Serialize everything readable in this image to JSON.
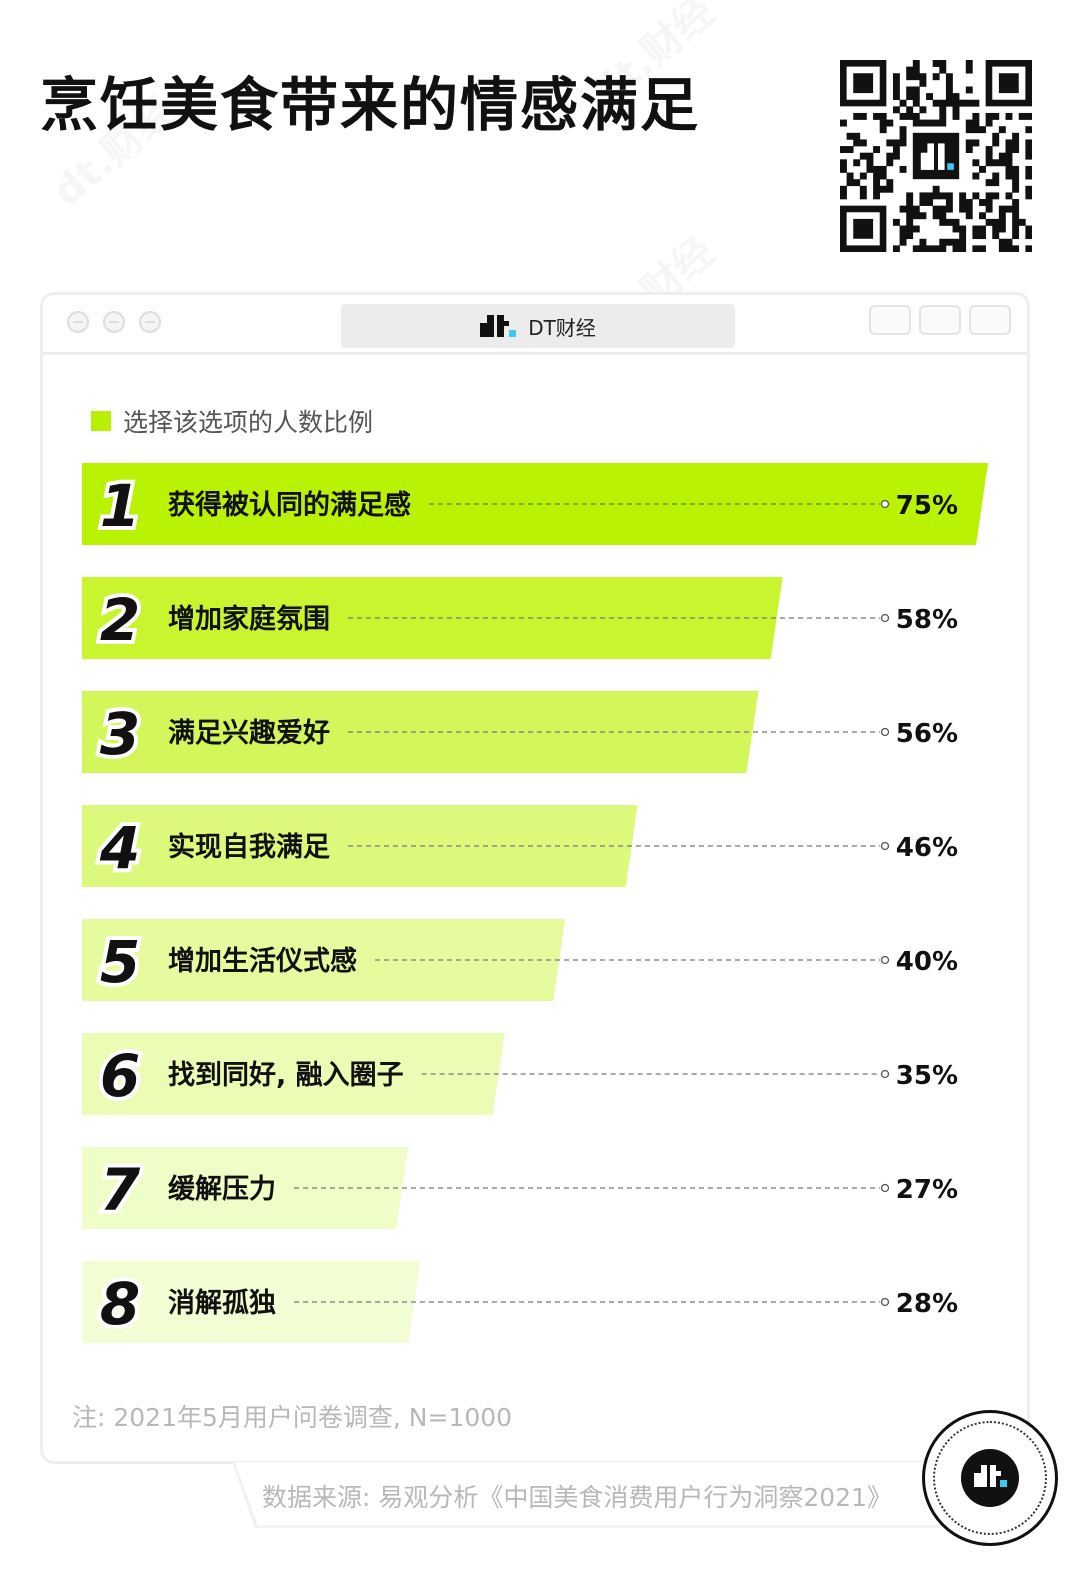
{
  "page": {
    "title": "烹饪美食带来的情感满足",
    "brand": "DT财经",
    "legend_label": "选择该选项的人数比例",
    "note": "注: 2021年5月用户问卷调查, N=1000",
    "source": "数据来源: 易观分析《中国美食消费用户行为洞察2021》",
    "watermark": "dt.财经"
  },
  "colors": {
    "accent": "#b8f000",
    "bar_shades": [
      "#b9f202",
      "#c8f52e",
      "#d3f75b",
      "#dcf97c",
      "#e5fb9e",
      "#ebfcb5",
      "#effdc6",
      "#f2fdd3"
    ],
    "text": "#111111",
    "muted": "#b8b8b8"
  },
  "icons": {
    "qr": "qr-code-icon",
    "logo": "dt-logo-icon"
  },
  "chart_data": {
    "type": "bar",
    "orientation": "horizontal",
    "series": [
      {
        "name": "选择该选项的人数比例",
        "values": [
          75,
          58,
          56,
          46,
          40,
          35,
          27,
          28
        ]
      }
    ],
    "categories": [
      "获得被认同的满足感",
      "增加家庭氛围",
      "满足兴趣爱好",
      "实现自我满足",
      "增加生活仪式感",
      "找到同好, 融入圈子",
      "缓解压力",
      "消解孤独"
    ],
    "ranks": [
      "1",
      "2",
      "3",
      "4",
      "5",
      "6",
      "7",
      "8"
    ],
    "value_labels": [
      "75%",
      "58%",
      "56%",
      "46%",
      "40%",
      "35%",
      "27%",
      "28%"
    ],
    "xlim": [
      0,
      75
    ],
    "legend": "top-left",
    "grid": false
  }
}
